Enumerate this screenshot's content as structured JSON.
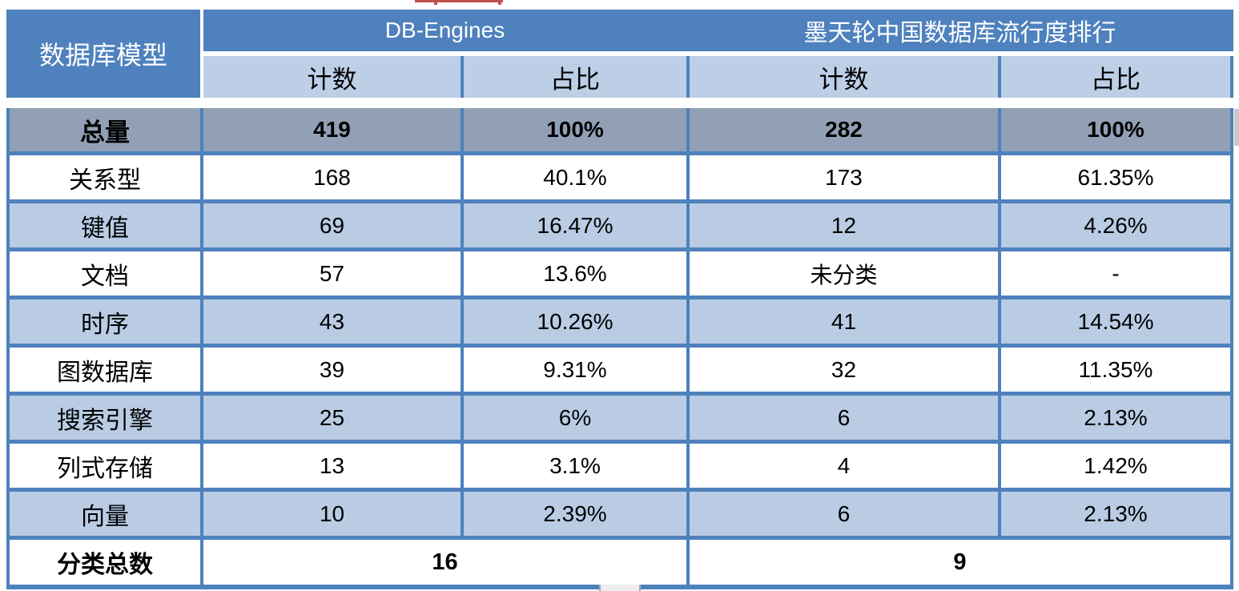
{
  "table": {
    "corner_header": "数据库模型",
    "group1": {
      "title": "DB-Engines",
      "col1": "计数",
      "col2": "占比"
    },
    "group2": {
      "title": "墨天轮中国数据库流行度排行",
      "col1": "计数",
      "col2": "占比"
    },
    "total_row": {
      "label": "总量",
      "c1": "419",
      "c2": "100%",
      "c3": "282",
      "c4": "100%"
    },
    "rows": [
      {
        "label": "关系型",
        "c1": "168",
        "c2": "40.1%",
        "c3": "173",
        "c4": "61.35%"
      },
      {
        "label": "键值",
        "c1": "69",
        "c2": "16.47%",
        "c3": "12",
        "c4": "4.26%"
      },
      {
        "label": "文档",
        "c1": "57",
        "c2": "13.6%",
        "c3": "未分类",
        "c4": "-"
      },
      {
        "label": "时序",
        "c1": "43",
        "c2": "10.26%",
        "c3": "41",
        "c4": "14.54%"
      },
      {
        "label": "图数据库",
        "c1": "39",
        "c2": "9.31%",
        "c3": "32",
        "c4": "11.35%"
      },
      {
        "label": "搜索引擎",
        "c1": "25",
        "c2": "6%",
        "c3": "6",
        "c4": "2.13%"
      },
      {
        "label": "列式存储",
        "c1": "13",
        "c2": "3.1%",
        "c3": "4",
        "c4": "1.42%"
      },
      {
        "label": "向量",
        "c1": "10",
        "c2": "2.39%",
        "c3": "6",
        "c4": "2.13%"
      }
    ],
    "footer_row": {
      "label": "分类总数",
      "v1": "16",
      "v2": "9"
    }
  },
  "colors": {
    "header_blue": "#4E81BD",
    "border_blue": "#4E81BD",
    "band_light_blue": "#B9CCE4",
    "subheader_light_blue": "#BDCFE6",
    "total_row_gray": "#91A0B5",
    "red_fragment": "#C0504D",
    "text": "#000000",
    "header_text": "#FFFFFF"
  },
  "chart_data": {
    "type": "table",
    "title": "数据库模型分类对比：DB-Engines vs 墨天轮中国数据库流行度排行",
    "column_groups": [
      "数据库模型",
      "DB-Engines",
      "墨天轮中国数据库流行度排行"
    ],
    "columns": [
      "数据库模型",
      "DB-Engines 计数",
      "DB-Engines 占比",
      "墨天轮 计数",
      "墨天轮 占比"
    ],
    "total_row": [
      "总量",
      "419",
      "100%",
      "282",
      "100%"
    ],
    "rows": [
      [
        "关系型",
        "168",
        "40.1%",
        "173",
        "61.35%"
      ],
      [
        "键值",
        "69",
        "16.47%",
        "12",
        "4.26%"
      ],
      [
        "文档",
        "57",
        "13.6%",
        "未分类",
        "-"
      ],
      [
        "时序",
        "43",
        "10.26%",
        "41",
        "14.54%"
      ],
      [
        "图数据库",
        "39",
        "9.31%",
        "32",
        "11.35%"
      ],
      [
        "搜索引擎",
        "25",
        "6%",
        "6",
        "2.13%"
      ],
      [
        "列式存储",
        "13",
        "3.1%",
        "4",
        "1.42%"
      ],
      [
        "向量",
        "10",
        "2.39%",
        "6",
        "2.13%"
      ]
    ],
    "footer_row": [
      "分类总数",
      "16",
      "9"
    ],
    "notes": "分类总数 16 spans both DB-Engines columns; 9 spans both 墨天轮 columns"
  }
}
